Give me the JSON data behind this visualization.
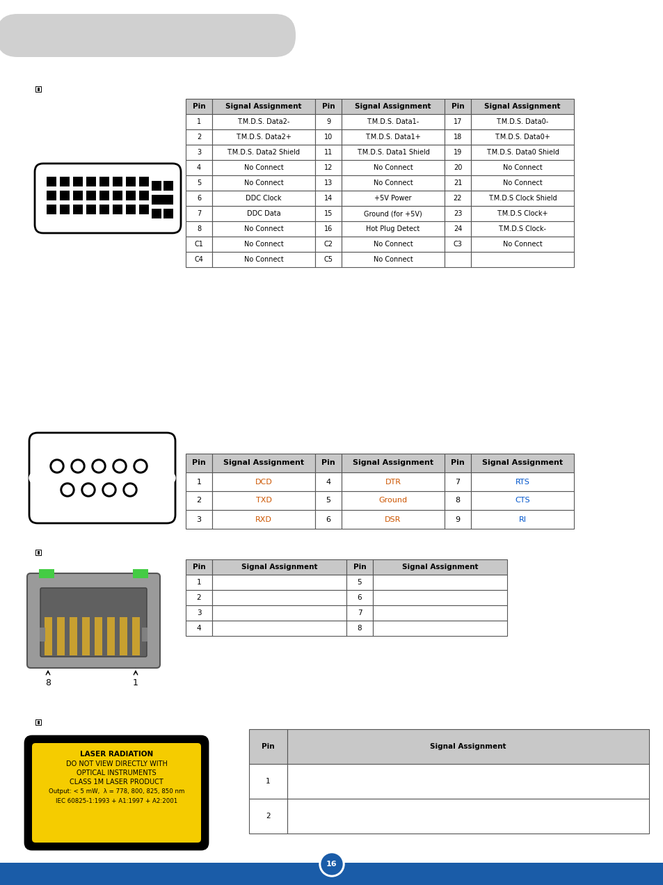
{
  "page_bg": "#ffffff",
  "header_bg": "#c8c8c8",
  "table_border": "#555555",
  "header_text_color": "#000000",
  "cell_text_color": "#000000",
  "orange_text": "#cc5500",
  "blue_text": "#0055cc",
  "footer_bg": "#1a5ca8",
  "top_banner_bg": "#d0d0d0",
  "dvi_table": {
    "header": [
      "Pin",
      "Signal Assignment",
      "Pin",
      "Signal Assignment",
      "Pin",
      "Signal Assignment"
    ],
    "rows": [
      [
        "1",
        "T.M.D.S. Data2-",
        "9",
        "T.M.D.S. Data1-",
        "17",
        "T.M.D.S. Data0-"
      ],
      [
        "2",
        "T.M.D.S. Data2+",
        "10",
        "T.M.D.S. Data1+",
        "18",
        "T.M.D.S. Data0+"
      ],
      [
        "3",
        "T.M.D.S. Data2 Shield",
        "11",
        "T.M.D.S. Data1 Shield",
        "19",
        "T.M.D.S. Data0 Shield"
      ],
      [
        "4",
        "No Connect",
        "12",
        "No Connect",
        "20",
        "No Connect"
      ],
      [
        "5",
        "No Connect",
        "13",
        "No Connect",
        "21",
        "No Connect"
      ],
      [
        "6",
        "DDC Clock",
        "14",
        "+5V Power",
        "22",
        "T.M.D.S Clock Shield"
      ],
      [
        "7",
        "DDC Data",
        "15",
        "Ground (for +5V)",
        "23",
        "T.M.D.S Clock+"
      ],
      [
        "8",
        "No Connect",
        "16",
        "Hot Plug Detect",
        "24",
        "T.M.D.S Clock-"
      ],
      [
        "C1",
        "No Connect",
        "C2",
        "No Connect",
        "C3",
        "No Connect"
      ],
      [
        "C4",
        "No Connect",
        "C5",
        "No Connect",
        "",
        ""
      ]
    ]
  },
  "rs232_table": {
    "header": [
      "Pin",
      "Signal Assignment",
      "Pin",
      "Signal Assignment",
      "Pin",
      "Signal Assignment"
    ],
    "rows": [
      [
        "1",
        "DCD",
        "4",
        "DTR",
        "7",
        "RTS"
      ],
      [
        "2",
        "TXD",
        "5",
        "Ground",
        "8",
        "CTS"
      ],
      [
        "3",
        "RXD",
        "6",
        "DSR",
        "9",
        "RI"
      ]
    ]
  },
  "rj45_table": {
    "header": [
      "Pin",
      "Signal Assignment",
      "Pin",
      "Signal Assignment"
    ],
    "rows": [
      [
        "1",
        "",
        "5",
        ""
      ],
      [
        "2",
        "",
        "6",
        ""
      ],
      [
        "3",
        "",
        "7",
        ""
      ],
      [
        "4",
        "",
        "8",
        ""
      ]
    ]
  },
  "optical_table": {
    "header": [
      "Pin",
      "Signal Assignment"
    ],
    "rows": [
      [
        "1",
        ""
      ],
      [
        "2",
        ""
      ]
    ]
  },
  "page_number": "16"
}
